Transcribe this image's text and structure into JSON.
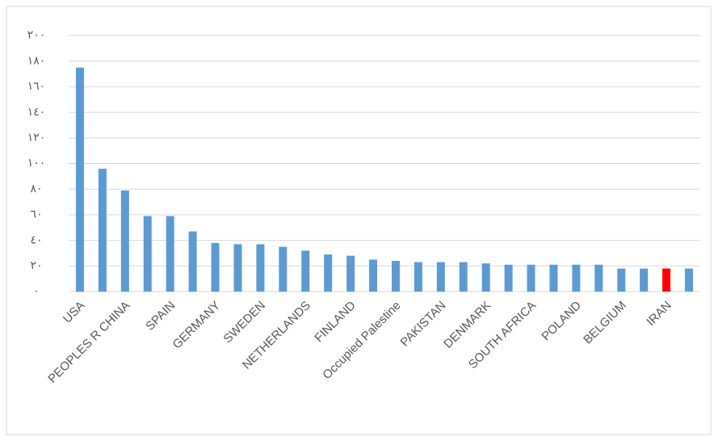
{
  "chart_data": {
    "type": "bar",
    "categories": [
      "USA",
      null,
      "PEOPLES R CHINA",
      null,
      "SPAIN",
      null,
      "GERMANY",
      null,
      "SWEDEN",
      null,
      "NETHERLANDS",
      null,
      "FINLAND",
      null,
      "Occupied Palestine",
      null,
      "PAKISTAN",
      null,
      "DENMARK",
      null,
      "SOUTH AFRICA",
      null,
      "POLAND",
      null,
      "BELGIUM",
      null,
      "IRAN",
      null
    ],
    "values": [
      175,
      96,
      79,
      59,
      59,
      47,
      38,
      37,
      37,
      35,
      32,
      29,
      28,
      25,
      24,
      23,
      23,
      23,
      22,
      21,
      21,
      21,
      21,
      21,
      18,
      18,
      18,
      18
    ],
    "colors": [
      "#5b9bd5",
      "#5b9bd5",
      "#5b9bd5",
      "#5b9bd5",
      "#5b9bd5",
      "#5b9bd5",
      "#5b9bd5",
      "#5b9bd5",
      "#5b9bd5",
      "#5b9bd5",
      "#5b9bd5",
      "#5b9bd5",
      "#5b9bd5",
      "#5b9bd5",
      "#5b9bd5",
      "#5b9bd5",
      "#5b9bd5",
      "#5b9bd5",
      "#5b9bd5",
      "#5b9bd5",
      "#5b9bd5",
      "#5b9bd5",
      "#5b9bd5",
      "#5b9bd5",
      "#5b9bd5",
      "#5b9bd5",
      "#ff0000",
      "#5b9bd5"
    ],
    "ylim": [
      0,
      200
    ],
    "yticks": [
      {
        "value": 0,
        "label": "٠"
      },
      {
        "value": 20,
        "label": "٢٠"
      },
      {
        "value": 40,
        "label": "٤٠"
      },
      {
        "value": 60,
        "label": "٦٠"
      },
      {
        "value": 80,
        "label": "٨٠"
      },
      {
        "value": 100,
        "label": "١٠٠"
      },
      {
        "value": 120,
        "label": "١٢٠"
      },
      {
        "value": 140,
        "label": "١٤٠"
      },
      {
        "value": 160,
        "label": "١٦٠"
      },
      {
        "value": 180,
        "label": "١٨٠"
      },
      {
        "value": 200,
        "label": "٢٠٠"
      }
    ],
    "grid": true
  }
}
